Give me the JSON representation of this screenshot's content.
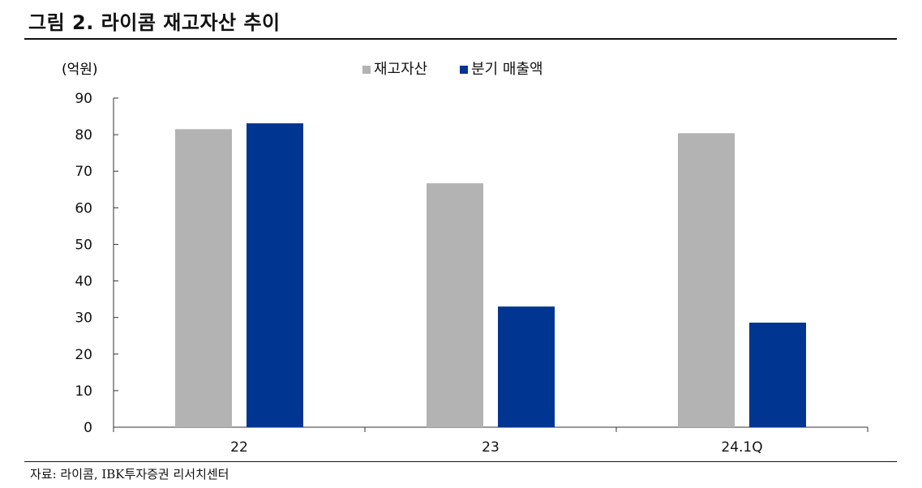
{
  "header": {
    "title": "그림 2. 라이콤 재고자산 추이"
  },
  "footer": {
    "source": "자료: 라이콤, IBK투자증권 리서치센터"
  },
  "chart_data": {
    "type": "bar",
    "unit_label": "(억원)",
    "categories": [
      "22",
      "23",
      "24.1Q"
    ],
    "series": [
      {
        "name": "재고자산",
        "color": "#b3b3b3",
        "values": [
          81.5,
          66.7,
          80.4
        ]
      },
      {
        "name": "분기 매출액",
        "color": "#003591",
        "values": [
          83.1,
          33.0,
          28.6
        ]
      }
    ],
    "ylim": [
      0,
      90
    ],
    "yticks": [
      0,
      10,
      20,
      30,
      40,
      50,
      60,
      70,
      80,
      90
    ],
    "legend_position": "top-center",
    "grid": false
  }
}
